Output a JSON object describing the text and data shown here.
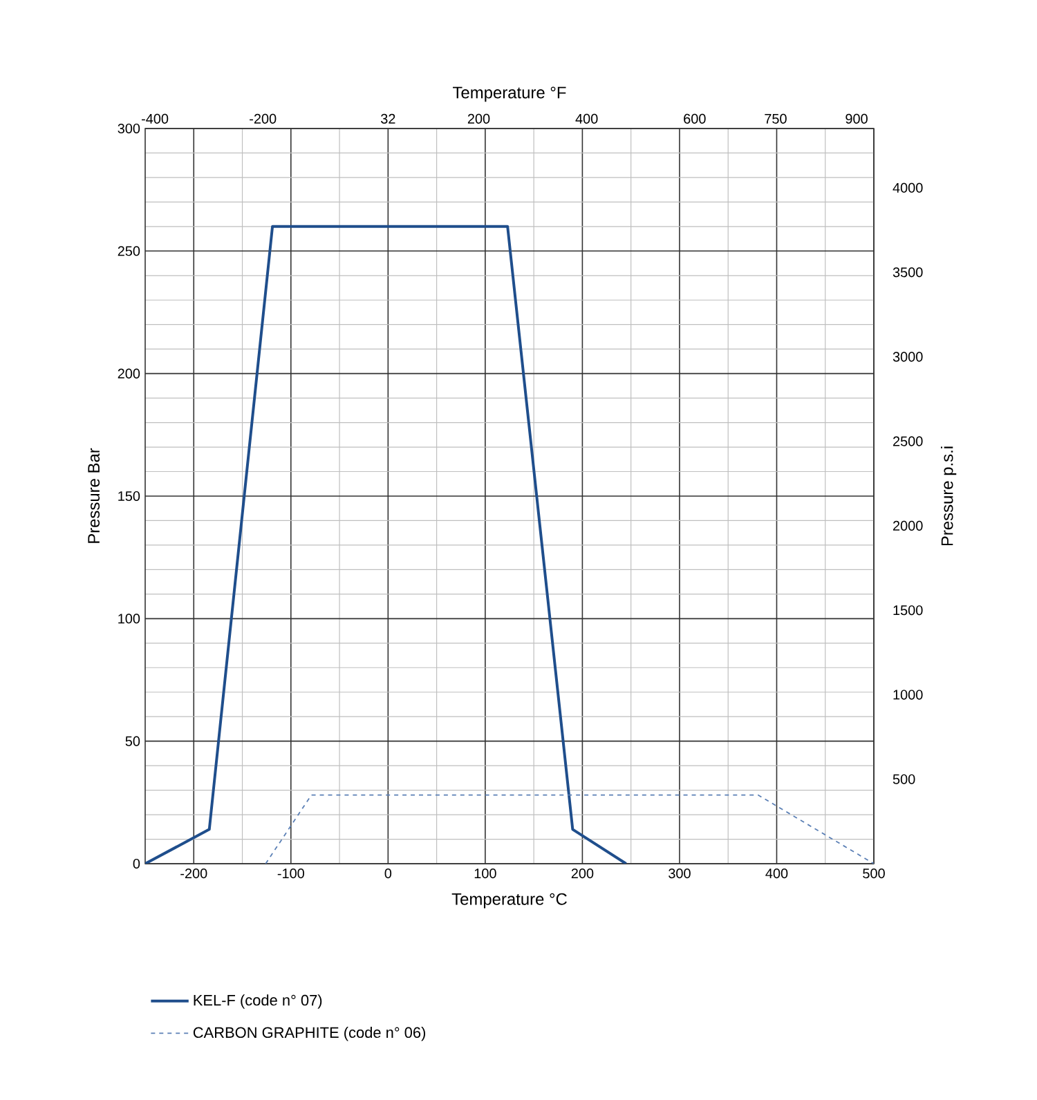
{
  "chart_data": {
    "type": "line",
    "xlabel": "Temperature °C",
    "ylabel": "Pressure Bar",
    "y2label": "Pressure p.s.i",
    "x2label": "Temperature °F",
    "xlim": [
      -250,
      500
    ],
    "xticks": [
      -200,
      -100,
      0,
      100,
      200,
      300,
      400,
      500
    ],
    "ylim": [
      0,
      300
    ],
    "yticks": [
      0,
      50,
      100,
      150,
      200,
      250,
      300
    ],
    "x2lim": [
      -418,
      932
    ],
    "x2ticks": [
      -400,
      -200,
      32,
      200,
      400,
      600,
      750,
      900
    ],
    "y2lim": [
      0,
      4351
    ],
    "y2ticks": [
      500,
      1000,
      1500,
      2000,
      2500,
      3000,
      3500,
      4000
    ],
    "grid": true,
    "legend": "bottom",
    "series": [
      {
        "name": "KEL-F (code n° 07)",
        "color": "#1f4e8c",
        "line_style": "solid",
        "x": [
          -250,
          -184,
          -119,
          123,
          190,
          245
        ],
        "values": [
          0,
          14,
          260,
          260,
          14,
          0
        ]
      },
      {
        "name": "CARBON GRAPHITE (code n° 06)",
        "color": "#5a7fb5",
        "line_style": "dashed",
        "x": [
          -126,
          -79,
          381,
          500
        ],
        "values": [
          0,
          28,
          28,
          0
        ]
      }
    ]
  }
}
